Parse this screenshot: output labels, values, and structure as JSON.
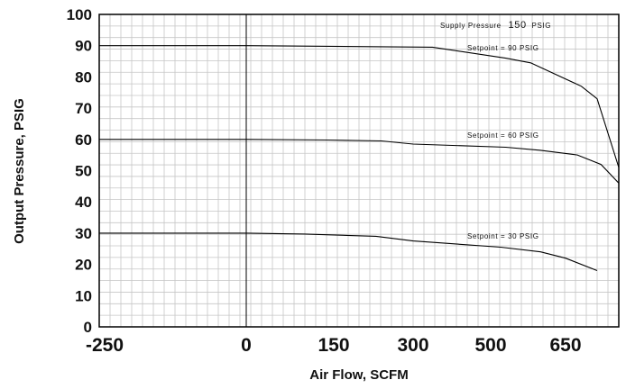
{
  "chart_data": {
    "type": "line",
    "title": "",
    "xlabel": "Air Flow, SCFM",
    "ylabel": "Output Pressure, PSIG",
    "x_ticks": [
      "-250",
      "0",
      "150",
      "300",
      "500",
      "650"
    ],
    "y_ticks": [
      "0",
      "10",
      "20",
      "30",
      "40",
      "50",
      "60",
      "70",
      "80",
      "90",
      "100"
    ],
    "xlim": [
      -250,
      785
    ],
    "ylim": [
      0,
      100
    ],
    "grid": true,
    "annotation": {
      "supply_label": "Supply Pressure",
      "supply_value": "150",
      "supply_unit": "PSIG"
    },
    "series": [
      {
        "name": "Setpoint = 90 PSIG",
        "x": [
          -250,
          0,
          350,
          530,
          580,
          690,
          730,
          785
        ],
        "y": [
          90,
          90,
          89.5,
          86,
          84.5,
          77,
          73,
          51
        ]
      },
      {
        "name": "Setpoint = 60 PSIG",
        "x": [
          -250,
          0,
          140,
          240,
          300,
          530,
          600,
          680,
          740,
          785
        ],
        "y": [
          60,
          60,
          59.8,
          59.5,
          58.5,
          57.5,
          56.5,
          55,
          52,
          46
        ]
      },
      {
        "name": "Setpoint = 30 PSIG",
        "x": [
          -250,
          0,
          100,
          230,
          300,
          520,
          600,
          650,
          730
        ],
        "y": [
          30,
          30,
          29.7,
          29,
          27.5,
          25.5,
          24,
          22,
          18
        ]
      }
    ]
  }
}
